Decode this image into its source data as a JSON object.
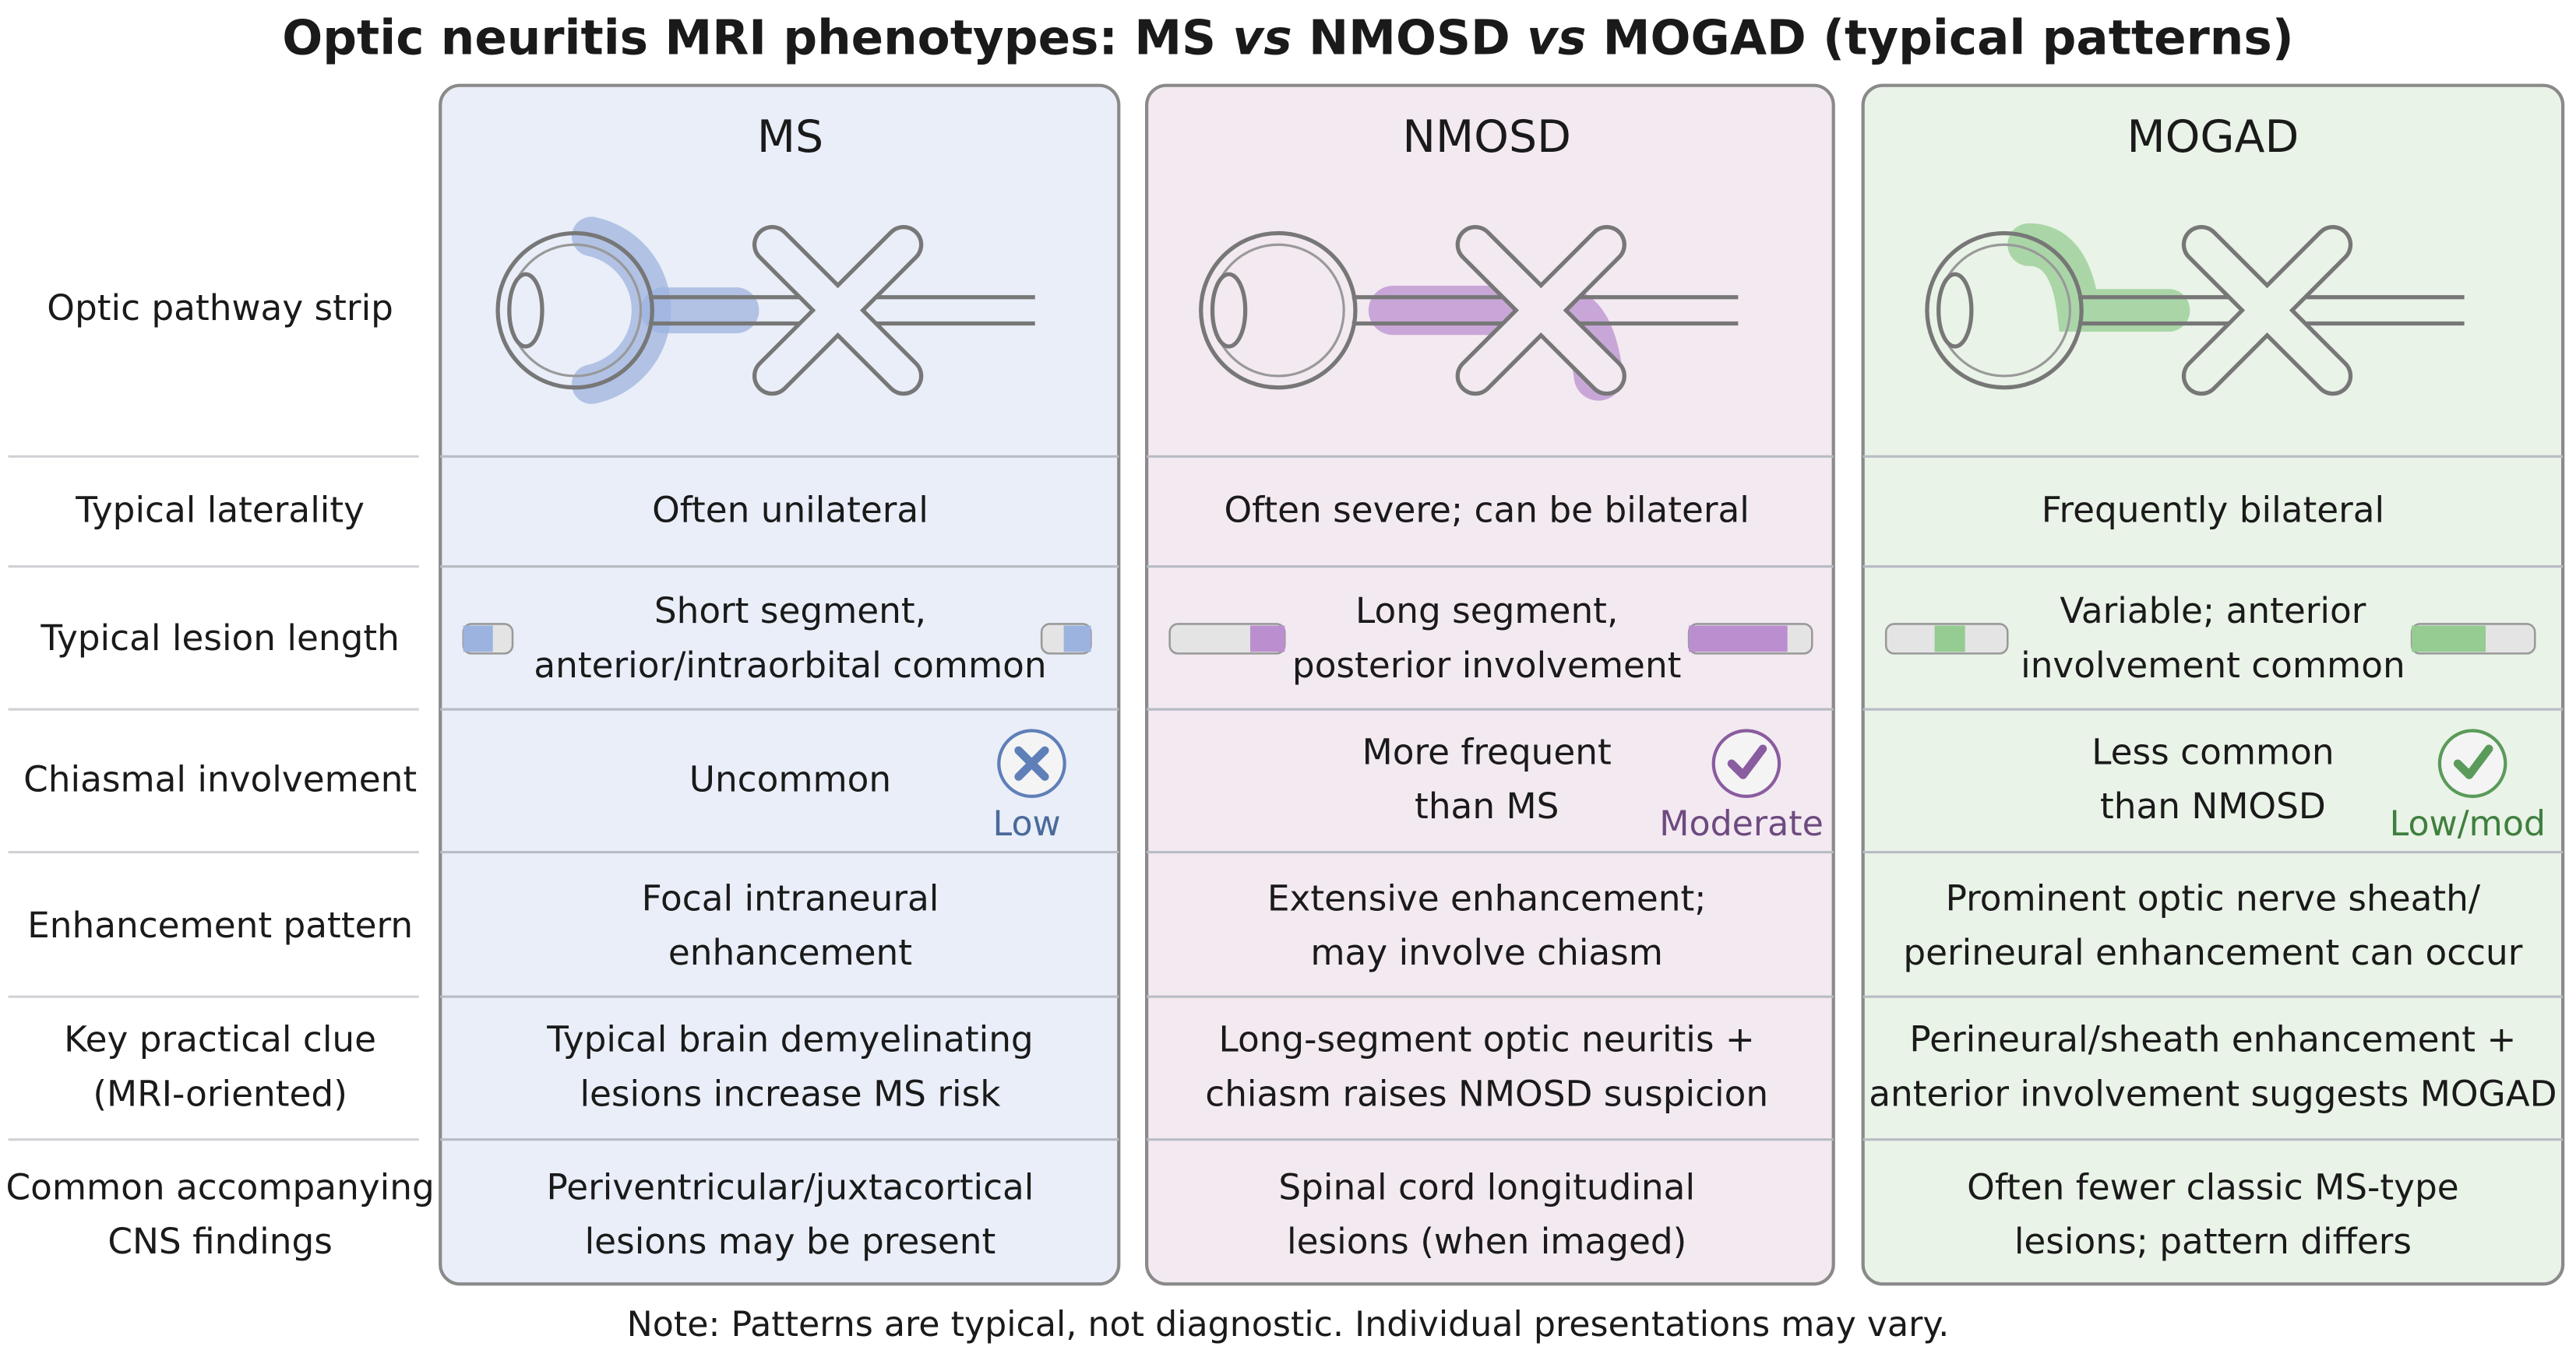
{
  "title": [
    "Optic neuritis MRI phenotypes: MS ",
    "vs",
    " NMOSD ",
    "vs",
    " MOGAD (typical patterns)"
  ],
  "columns": [
    "MS",
    "NMOSD",
    "MOGAD"
  ],
  "rows": [
    {
      "label": [
        "Optic pathway strip"
      ]
    },
    {
      "label": [
        "Typical laterality"
      ],
      "cells": [
        [
          "Often unilateral"
        ],
        [
          "Often severe; can be bilateral"
        ],
        [
          "Frequently bilateral"
        ]
      ]
    },
    {
      "label": [
        "Typical lesion length"
      ],
      "cells": [
        [
          "Short segment,",
          "anterior/intraorbital common"
        ],
        [
          "Long segment,",
          "posterior involvement"
        ],
        [
          "Variable; anterior",
          "involvement common"
        ]
      ]
    },
    {
      "label": [
        "Chiasmal involvement"
      ],
      "cells": [
        [
          "Uncommon"
        ],
        [
          "More frequent",
          "than MS"
        ],
        [
          "Less common",
          "than NMOSD"
        ]
      ],
      "badges": [
        "Low",
        "Moderate",
        "Low/mod"
      ]
    },
    {
      "label": [
        "Enhancement pattern"
      ],
      "cells": [
        [
          "Focal intraneural",
          "enhancement"
        ],
        [
          "Extensive enhancement;",
          "may involve chiasm"
        ],
        [
          "Prominent optic nerve sheath/",
          "perineural enhancement can occur"
        ]
      ]
    },
    {
      "label": [
        "Key practical clue",
        "(MRI-oriented)"
      ],
      "cells": [
        [
          "Typical brain demyelinating",
          "lesions increase MS risk"
        ],
        [
          "Long-segment optic neuritis +",
          "chiasm raises NMOSD suspicion"
        ],
        [
          "Perineural/sheath enhancement +",
          "anterior involvement suggests MOGAD"
        ]
      ]
    },
    {
      "label": [
        "Common accompanying",
        "CNS findings"
      ],
      "cells": [
        [
          "Periventricular/juxtacortical",
          "lesions may be present"
        ],
        [
          "Spinal cord longitudinal",
          "lesions (when imaged)"
        ],
        [
          "Often fewer classic MS-type",
          "lesions; pattern differs"
        ]
      ]
    }
  ],
  "note": "Note: Patterns are typical, not diagnostic. Individual presentations may vary."
}
